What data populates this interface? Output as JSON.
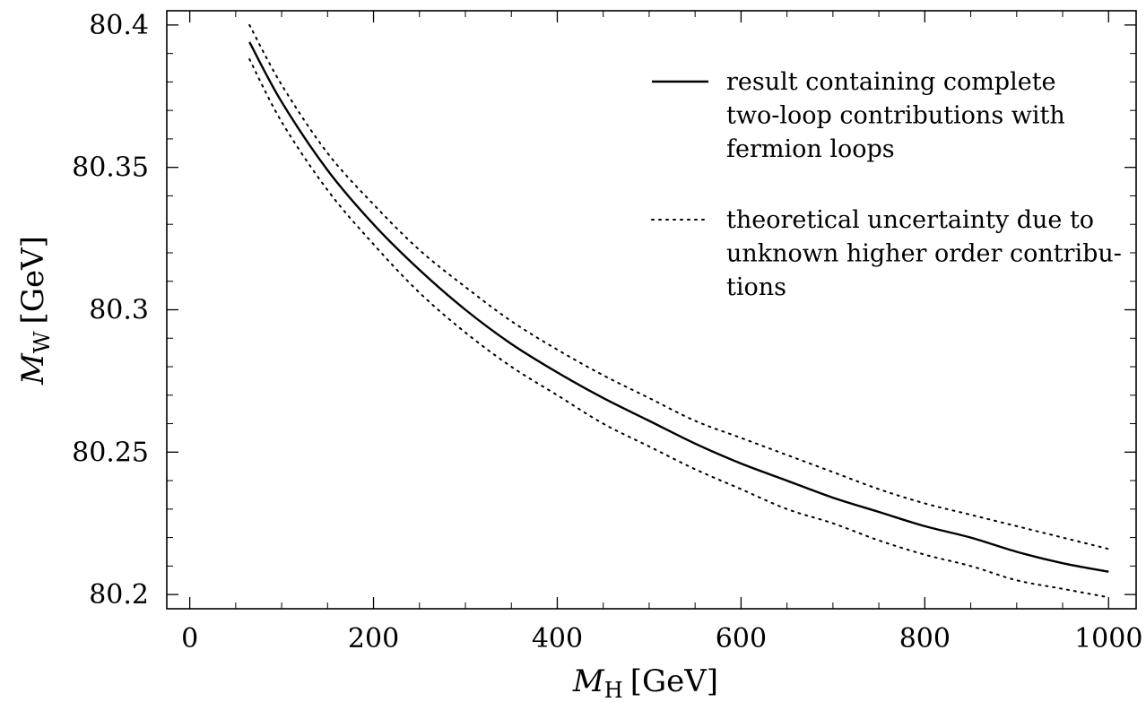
{
  "chart_data": {
    "type": "line",
    "title": "",
    "xlabel": {
      "symbol": "M",
      "subscript": "H",
      "unit": "[GeV]"
    },
    "ylabel": {
      "symbol": "M",
      "subscript": "W",
      "unit": "[GeV]"
    },
    "xlim": [
      -25,
      1030
    ],
    "ylim": [
      80.195,
      80.405
    ],
    "x_ticks": [
      0,
      200,
      400,
      600,
      800,
      1000
    ],
    "x_tick_labels": [
      "0",
      "200",
      "400",
      "600",
      "800",
      "1000"
    ],
    "y_ticks": [
      80.2,
      80.25,
      80.3,
      80.35,
      80.4
    ],
    "y_tick_labels": [
      "80.2",
      "80.25",
      "80.3",
      "80.35",
      "80.4"
    ],
    "grid": false,
    "legend_position": "top-right",
    "legend": [
      {
        "series": "central",
        "lines": [
          "result containing complete",
          "two-loop contributions with",
          "fermion loops"
        ]
      },
      {
        "series": "upper",
        "lines": [
          "theoretical  uncertainty  due  to",
          "unknown higher order contribu-",
          "tions"
        ]
      }
    ],
    "series": [
      {
        "style": "solid",
        "x": [
          65,
          100,
          150,
          200,
          250,
          300,
          350,
          400,
          450,
          500,
          550,
          600,
          650,
          700,
          750,
          800,
          850,
          900,
          950,
          1000
        ],
        "values": [
          80.394,
          80.373,
          80.349,
          80.33,
          80.314,
          80.3,
          80.288,
          80.278,
          80.269,
          80.261,
          80.253,
          80.246,
          80.24,
          80.234,
          80.229,
          80.224,
          80.22,
          80.215,
          80.211,
          80.208
        ]
      },
      {
        "style": "dotted",
        "x": [
          65,
          100,
          150,
          200,
          250,
          300,
          350,
          400,
          450,
          500,
          550,
          600,
          650,
          700,
          750,
          800,
          850,
          900,
          950,
          1000
        ],
        "values": [
          80.4,
          80.379,
          80.355,
          80.337,
          80.321,
          80.308,
          80.296,
          80.286,
          80.277,
          80.269,
          80.261,
          80.255,
          80.249,
          80.243,
          80.237,
          80.232,
          80.228,
          80.224,
          80.22,
          80.216
        ]
      },
      {
        "style": "dotted",
        "x": [
          65,
          100,
          150,
          200,
          250,
          300,
          350,
          400,
          450,
          500,
          550,
          600,
          650,
          700,
          750,
          800,
          850,
          900,
          950,
          1000
        ],
        "values": [
          80.388,
          80.366,
          80.342,
          80.323,
          80.306,
          80.292,
          80.28,
          80.27,
          80.26,
          80.252,
          80.244,
          80.237,
          80.23,
          80.225,
          80.219,
          80.214,
          80.21,
          80.205,
          80.202,
          80.199
        ]
      }
    ]
  }
}
